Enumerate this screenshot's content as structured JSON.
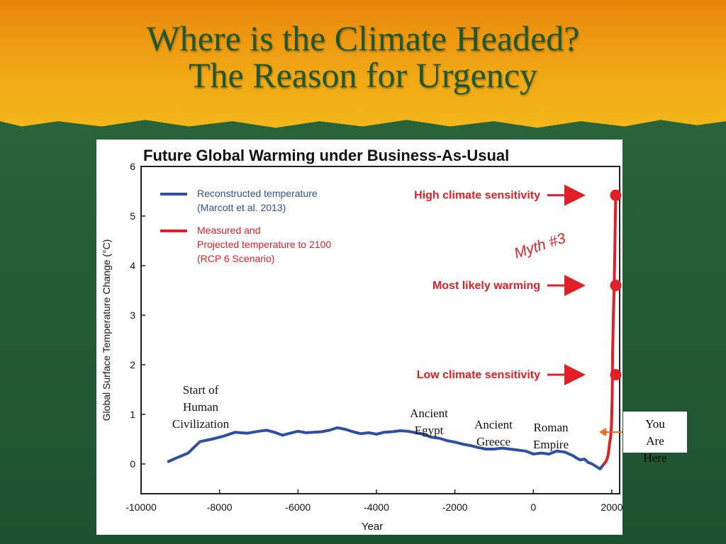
{
  "slide": {
    "title_line1": "Where is the Climate Headed?",
    "title_line2": "The Reason for Urgency",
    "you_are_here": [
      "You",
      "Are",
      "Here"
    ]
  },
  "chart_data": {
    "type": "line",
    "title": "Future Global Warming under Business-As-Usual",
    "xlabel": "Year",
    "ylabel": "Global Surface Temperature Change (°C)",
    "xlim": [
      -10000,
      2200
    ],
    "ylim": [
      -0.6,
      6
    ],
    "xticks": [
      -10000,
      -8000,
      -6000,
      -4000,
      -2000,
      0,
      2000
    ],
    "yticks": [
      0,
      1,
      2,
      3,
      4,
      5,
      6
    ],
    "grid": false,
    "legend_placement": "top-left",
    "legend": [
      {
        "label_lines": [
          "Reconstructed temperature",
          "(Marcott et al. 2013)"
        ],
        "color": "#2e4fa2"
      },
      {
        "label_lines": [
          "Measured and",
          "Projected temperature to 2100",
          "(RCP 6 Scenario)"
        ],
        "color": "#e01f26"
      }
    ],
    "series": [
      {
        "color": "#2e4fa2",
        "x": [
          -9300,
          -9100,
          -8800,
          -8500,
          -8200,
          -7900,
          -7600,
          -7300,
          -7000,
          -6800,
          -6600,
          -6400,
          -6200,
          -6000,
          -5800,
          -5600,
          -5400,
          -5200,
          -5000,
          -4800,
          -4600,
          -4400,
          -4200,
          -4000,
          -3800,
          -3600,
          -3400,
          -3200,
          -3000,
          -2800,
          -2600,
          -2400,
          -2200,
          -2000,
          -1800,
          -1600,
          -1400,
          -1200,
          -1000,
          -800,
          -600,
          -400,
          -200,
          0,
          200,
          400,
          600,
          800,
          1000,
          1100,
          1200,
          1300,
          1400,
          1500,
          1600,
          1700,
          1750,
          1800
        ],
        "values": [
          0.05,
          0.12,
          0.22,
          0.45,
          0.5,
          0.56,
          0.64,
          0.62,
          0.66,
          0.68,
          0.64,
          0.58,
          0.62,
          0.66,
          0.63,
          0.64,
          0.65,
          0.68,
          0.73,
          0.7,
          0.65,
          0.61,
          0.63,
          0.6,
          0.64,
          0.65,
          0.67,
          0.66,
          0.63,
          0.6,
          0.54,
          0.52,
          0.47,
          0.44,
          0.4,
          0.37,
          0.33,
          0.3,
          0.3,
          0.32,
          0.3,
          0.28,
          0.26,
          0.2,
          0.22,
          0.2,
          0.26,
          0.24,
          0.17,
          0.12,
          0.08,
          0.1,
          0.03,
          0.0,
          -0.05,
          -0.1,
          -0.05,
          0.0
        ]
      },
      {
        "color": "#e01f26",
        "x": [
          1800,
          1850,
          1880,
          1910,
          1940,
          1970,
          1990,
          2000,
          2010,
          2015,
          2020,
          2030,
          2040,
          2050,
          2060,
          2070,
          2080,
          2090,
          2100
        ],
        "values": [
          0.0,
          0.05,
          0.1,
          0.2,
          0.4,
          0.55,
          0.75,
          1.0,
          1.4,
          1.8,
          2.2,
          2.6,
          3.0,
          3.3,
          3.6,
          4.0,
          4.5,
          5.0,
          5.42
        ]
      }
    ],
    "endpoints": [
      {
        "x": 2100,
        "y": 5.42,
        "label": "High climate sensitivity"
      },
      {
        "x": 2100,
        "y": 3.6,
        "label": "Most likely warming"
      },
      {
        "x": 2100,
        "y": 1.8,
        "label": "Low climate sensitivity"
      }
    ],
    "annotations": {
      "myth": "Myth #3",
      "eras": [
        {
          "lines": [
            "Start of",
            "Human",
            "Civilization"
          ]
        },
        {
          "lines": [
            "Ancient",
            "Egypt"
          ]
        },
        {
          "lines": [
            "Ancient",
            "Greece"
          ]
        },
        {
          "lines": [
            "Roman",
            "Empire"
          ]
        }
      ]
    }
  }
}
